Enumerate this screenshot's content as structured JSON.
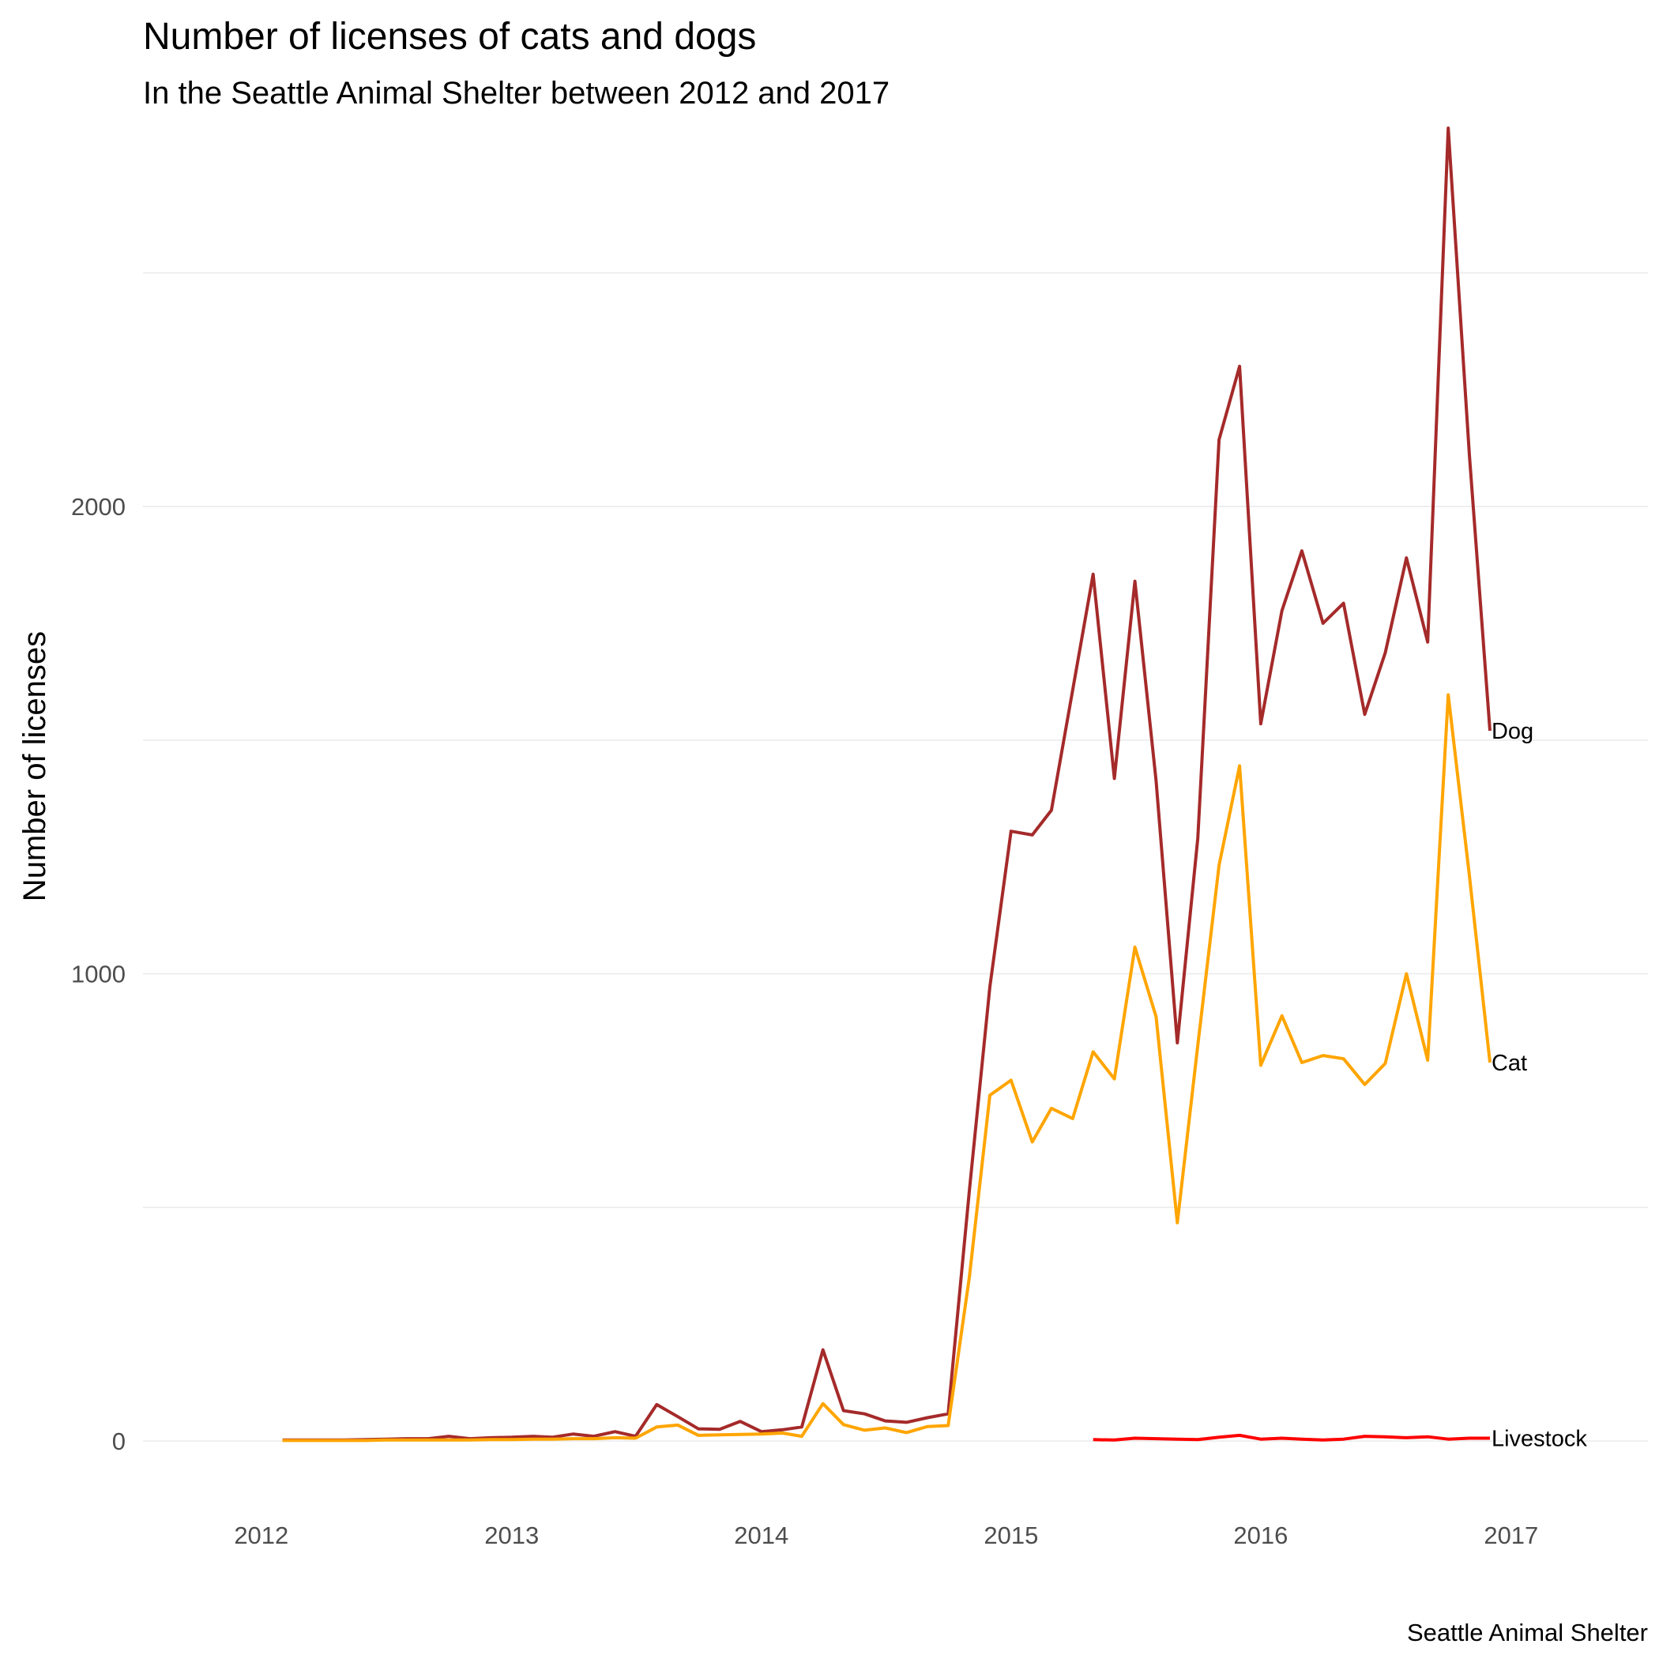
{
  "chart_data": {
    "type": "line",
    "title": "Number of licenses of cats and dogs",
    "subtitle": "In the Seattle Animal Shelter between 2012 and 2017",
    "ylabel": "Number of licenses",
    "xlabel": "",
    "caption": "Seattle Animal Shelter",
    "x_ticks": [
      "2012",
      "2013",
      "2014",
      "2015",
      "2016",
      "2017"
    ],
    "y_ticks": [
      "0",
      "1000",
      "2000"
    ],
    "xlim": [
      "2011-07-12",
      "2017-07-20"
    ],
    "ylim": [
      -120,
      2800
    ],
    "grid": true,
    "legend": "direct labels at line ends",
    "series": [
      {
        "name": "Dog",
        "color": "#a52a2a",
        "points": [
          [
            "2012-02-01",
            2
          ],
          [
            "2012-03-01",
            2
          ],
          [
            "2012-04-01",
            2
          ],
          [
            "2012-05-01",
            2
          ],
          [
            "2012-06-01",
            3
          ],
          [
            "2012-07-01",
            4
          ],
          [
            "2012-08-01",
            5
          ],
          [
            "2012-09-01",
            5
          ],
          [
            "2012-10-01",
            10
          ],
          [
            "2012-11-01",
            5
          ],
          [
            "2012-12-01",
            7
          ],
          [
            "2013-01-01",
            8
          ],
          [
            "2013-02-01",
            10
          ],
          [
            "2013-03-01",
            8
          ],
          [
            "2013-04-01",
            15
          ],
          [
            "2013-05-01",
            10
          ],
          [
            "2013-06-01",
            20
          ],
          [
            "2013-07-01",
            10
          ],
          [
            "2013-08-01",
            78
          ],
          [
            "2013-09-01",
            52
          ],
          [
            "2013-10-01",
            26
          ],
          [
            "2013-11-01",
            25
          ],
          [
            "2013-12-01",
            42
          ],
          [
            "2014-01-01",
            20
          ],
          [
            "2014-02-01",
            24
          ],
          [
            "2014-03-01",
            30
          ],
          [
            "2014-04-01",
            195
          ],
          [
            "2014-05-01",
            65
          ],
          [
            "2014-06-01",
            58
          ],
          [
            "2014-07-01",
            43
          ],
          [
            "2014-08-01",
            40
          ],
          [
            "2014-09-01",
            50
          ],
          [
            "2014-10-01",
            58
          ],
          [
            "2014-11-01",
            535
          ],
          [
            "2014-12-01",
            972
          ],
          [
            "2015-01-01",
            1305
          ],
          [
            "2015-02-01",
            1297
          ],
          [
            "2015-03-01",
            1350
          ],
          [
            "2015-04-01",
            1607
          ],
          [
            "2015-05-01",
            1855
          ],
          [
            "2015-06-01",
            1418
          ],
          [
            "2015-07-01",
            1840
          ],
          [
            "2015-08-01",
            1413
          ],
          [
            "2015-09-01",
            852
          ],
          [
            "2015-10-01",
            1290
          ],
          [
            "2015-11-01",
            2143
          ],
          [
            "2015-12-01",
            2300
          ],
          [
            "2016-01-01",
            1535
          ],
          [
            "2016-02-01",
            1777
          ],
          [
            "2016-03-01",
            1905
          ],
          [
            "2016-04-01",
            1750
          ],
          [
            "2016-05-01",
            1793
          ],
          [
            "2016-06-01",
            1555
          ],
          [
            "2016-07-01",
            1687
          ],
          [
            "2016-08-01",
            1890
          ],
          [
            "2016-09-01",
            1710
          ],
          [
            "2016-10-01",
            2810
          ],
          [
            "2016-11-01",
            2110
          ],
          [
            "2016-12-01",
            1520
          ]
        ]
      },
      {
        "name": "Cat",
        "color": "#ffa500",
        "points": [
          [
            "2012-02-01",
            1
          ],
          [
            "2012-03-01",
            1
          ],
          [
            "2012-04-01",
            1
          ],
          [
            "2012-05-01",
            1
          ],
          [
            "2012-06-01",
            1
          ],
          [
            "2012-07-01",
            2
          ],
          [
            "2012-08-01",
            2
          ],
          [
            "2012-09-01",
            2
          ],
          [
            "2012-10-01",
            2
          ],
          [
            "2012-11-01",
            2
          ],
          [
            "2012-12-01",
            3
          ],
          [
            "2013-01-01",
            3
          ],
          [
            "2013-02-01",
            4
          ],
          [
            "2013-03-01",
            4
          ],
          [
            "2013-04-01",
            5
          ],
          [
            "2013-05-01",
            5
          ],
          [
            "2013-06-01",
            7
          ],
          [
            "2013-07-01",
            6
          ],
          [
            "2013-08-01",
            30
          ],
          [
            "2013-09-01",
            34
          ],
          [
            "2013-10-01",
            12
          ],
          [
            "2013-11-01",
            13
          ],
          [
            "2013-12-01",
            14
          ],
          [
            "2014-01-01",
            15
          ],
          [
            "2014-02-01",
            17
          ],
          [
            "2014-03-01",
            10
          ],
          [
            "2014-04-01",
            80
          ],
          [
            "2014-05-01",
            35
          ],
          [
            "2014-06-01",
            23
          ],
          [
            "2014-07-01",
            28
          ],
          [
            "2014-08-01",
            18
          ],
          [
            "2014-09-01",
            31
          ],
          [
            "2014-10-01",
            33
          ],
          [
            "2014-11-01",
            350
          ],
          [
            "2014-12-01",
            740
          ],
          [
            "2015-01-01",
            772
          ],
          [
            "2015-02-01",
            640
          ],
          [
            "2015-03-01",
            712
          ],
          [
            "2015-04-01",
            690
          ],
          [
            "2015-05-01",
            833
          ],
          [
            "2015-06-01",
            775
          ],
          [
            "2015-07-01",
            1057
          ],
          [
            "2015-08-01",
            908
          ],
          [
            "2015-09-01",
            467
          ],
          [
            "2015-10-01",
            847
          ],
          [
            "2015-11-01",
            1232
          ],
          [
            "2015-12-01",
            1445
          ],
          [
            "2016-01-01",
            804
          ],
          [
            "2016-02-01",
            910
          ],
          [
            "2016-03-01",
            810
          ],
          [
            "2016-04-01",
            825
          ],
          [
            "2016-05-01",
            818
          ],
          [
            "2016-06-01",
            763
          ],
          [
            "2016-07-01",
            808
          ],
          [
            "2016-08-01",
            1000
          ],
          [
            "2016-09-01",
            815
          ],
          [
            "2016-10-01",
            1597
          ],
          [
            "2016-11-01",
            1210
          ],
          [
            "2016-12-01",
            810
          ]
        ]
      },
      {
        "name": "Livestock",
        "color": "#ff0000",
        "points": [
          [
            "2015-05-01",
            3
          ],
          [
            "2015-06-01",
            2
          ],
          [
            "2015-07-01",
            6
          ],
          [
            "2015-08-01",
            5
          ],
          [
            "2015-09-01",
            4
          ],
          [
            "2015-10-01",
            3
          ],
          [
            "2015-11-01",
            8
          ],
          [
            "2015-12-01",
            12
          ],
          [
            "2016-01-01",
            4
          ],
          [
            "2016-02-01",
            6
          ],
          [
            "2016-03-01",
            4
          ],
          [
            "2016-04-01",
            2
          ],
          [
            "2016-05-01",
            4
          ],
          [
            "2016-06-01",
            10
          ],
          [
            "2016-07-01",
            9
          ],
          [
            "2016-08-01",
            7
          ],
          [
            "2016-09-01",
            9
          ],
          [
            "2016-10-01",
            4
          ],
          [
            "2016-11-01",
            6
          ],
          [
            "2016-12-01",
            6
          ]
        ]
      }
    ]
  }
}
